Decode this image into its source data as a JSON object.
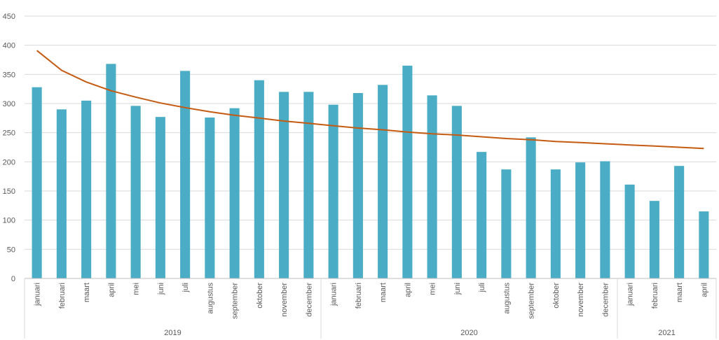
{
  "chart_data": {
    "type": "bar",
    "title": "",
    "xlabel": "",
    "ylabel": "",
    "ylim": [
      0,
      450
    ],
    "yticks": [
      0,
      50,
      100,
      150,
      200,
      250,
      300,
      350,
      400,
      450
    ],
    "grid": true,
    "legend": "none",
    "groups": [
      {
        "label": "2019",
        "count": 12
      },
      {
        "label": "2020",
        "count": 12
      },
      {
        "label": "2021",
        "count": 4
      }
    ],
    "categories": [
      "januari",
      "februari",
      "maart",
      "april",
      "mei",
      "juni",
      "juli",
      "augustus",
      "september",
      "oktober",
      "november",
      "december",
      "januari",
      "februari",
      "maart",
      "april",
      "mei",
      "juni",
      "juli",
      "augustus",
      "september",
      "oktober",
      "november",
      "december",
      "januari",
      "februari",
      "maart",
      "april"
    ],
    "series": [
      {
        "type": "bar",
        "color": "#4bacc6",
        "values": [
          328,
          290,
          305,
          368,
          296,
          277,
          356,
          276,
          292,
          340,
          320,
          320,
          298,
          318,
          332,
          365,
          314,
          296,
          217,
          187,
          242,
          187,
          199,
          201,
          161,
          133,
          193,
          115
        ]
      },
      {
        "type": "line",
        "trendline": "logarithmic",
        "color": "#c55a11",
        "values": [
          391,
          357,
          337,
          322,
          311,
          301,
          293,
          286,
          280,
          275,
          270,
          266,
          262,
          258,
          255,
          251,
          248,
          246,
          243,
          240,
          238,
          235,
          233,
          231,
          229,
          227,
          225,
          223
        ]
      }
    ]
  }
}
